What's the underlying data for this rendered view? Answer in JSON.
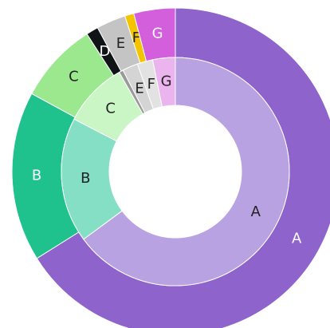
{
  "chart_data": {
    "type": "donut",
    "series": [
      {
        "labels": [
          "A",
          "B",
          "C",
          "D",
          "E",
          "F",
          "G"
        ],
        "values": [
          66.1,
          16.8,
          8.0,
          1.2,
          2.9,
          0.9,
          4.1
        ],
        "colors": [
          "#8e63cb",
          "#1fc28c",
          "#9be88f",
          "#111417",
          "#c4c4c4",
          "#f5c400",
          "#d35fdc"
        ]
      },
      {
        "labels": [
          "A",
          "B",
          "C",
          null,
          "E",
          "F",
          "G"
        ],
        "values": [
          64.9,
          17.7,
          9.2,
          0.6,
          2.2,
          2.2,
          3.2
        ],
        "colors": [
          "#b9a2e1",
          "#84dfc4",
          "#caf5c4",
          "#9a9a9a",
          "#d4d4d4",
          "#e2e2e2",
          "#ebb4ef"
        ]
      }
    ]
  }
}
